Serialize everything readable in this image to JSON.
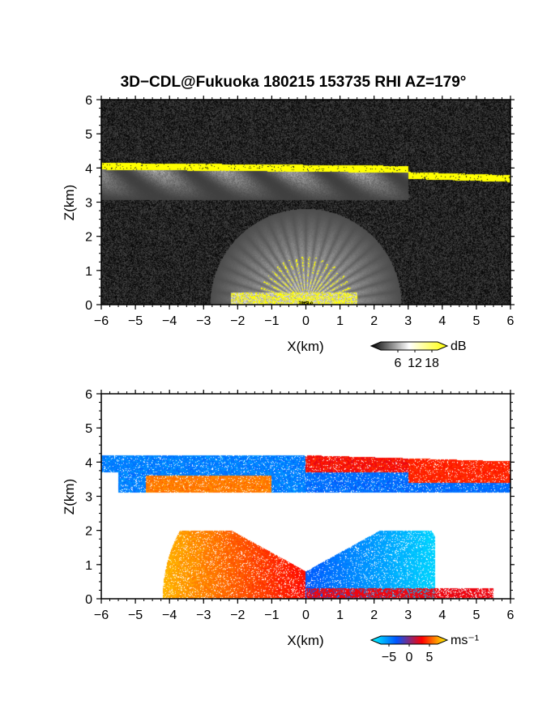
{
  "title": "3D−CDL@Fukuoka 180215 153735 RHI AZ=179°",
  "chart_data": [
    {
      "type": "heatmap",
      "panel": "reflectivity",
      "xlabel": "X(km)",
      "ylabel": "Z(km)",
      "xlim": [
        -6,
        6
      ],
      "ylim": [
        0,
        6
      ],
      "xticks": [
        "−6",
        "−5",
        "−4",
        "−3",
        "−2",
        "−1",
        "0",
        "1",
        "2",
        "3",
        "4",
        "5",
        "6"
      ],
      "yticks": [
        "0",
        "1",
        "2",
        "3",
        "4",
        "5",
        "6"
      ],
      "background": "noise",
      "features": [
        {
          "kind": "layer",
          "z_km": 4.0,
          "x_from": -6,
          "x_to": 6,
          "level": "high"
        },
        {
          "kind": "streaks",
          "z_from": 3.1,
          "z_to": 3.9,
          "x_from": -6,
          "x_to": 2.5,
          "level": "medium"
        },
        {
          "kind": "fan",
          "origin_x": 0,
          "origin_z": 0,
          "radius_km": 2.8,
          "level": "medium"
        },
        {
          "kind": "core",
          "x_from": -2.2,
          "x_to": 1.5,
          "z_from": 0,
          "z_to": 0.4,
          "level": "high"
        }
      ],
      "colorbar": {
        "unit": "dB",
        "ticks": [
          "6",
          "12",
          "18"
        ],
        "range": [
          0,
          20
        ],
        "colors": [
          "#000000",
          "#ffffff",
          "#ffff00"
        ]
      }
    },
    {
      "type": "heatmap",
      "panel": "doppler velocity",
      "xlabel": "X(km)",
      "ylabel": "Z(km)",
      "xlim": [
        -6,
        6
      ],
      "ylim": [
        0,
        6
      ],
      "xticks": [
        "−6",
        "−5",
        "−4",
        "−3",
        "−2",
        "−1",
        "0",
        "1",
        "2",
        "3",
        "4",
        "5",
        "6"
      ],
      "yticks": [
        "0",
        "1",
        "2",
        "3",
        "4",
        "5",
        "6"
      ],
      "features": [
        {
          "kind": "layer",
          "x_from": -6,
          "x_to": 0,
          "z_from": 3.5,
          "z_to": 4.2,
          "velocity": -3
        },
        {
          "kind": "layer",
          "x_from": 0,
          "x_to": 6,
          "z_from": 3.5,
          "z_to": 4.1,
          "velocity": 2.5
        },
        {
          "kind": "layer",
          "x_from": -4.7,
          "x_to": -1,
          "z_from": 3.1,
          "z_to": 3.6,
          "velocity": 4
        },
        {
          "kind": "fan",
          "x_from": -4,
          "x_to": 0,
          "z_from": 0,
          "z_to": 2.0,
          "velocity": 3.5
        },
        {
          "kind": "fan",
          "x_from": 0,
          "x_to": 3.8,
          "z_from": 0,
          "z_to": 1.8,
          "velocity": -4
        },
        {
          "kind": "streak",
          "x_from": 0,
          "x_to": 5.5,
          "z_from": 0,
          "z_to": 0.3,
          "velocity": 1
        }
      ],
      "colorbar": {
        "unit": "ms⁻¹",
        "ticks": [
          "−5",
          "0",
          "5"
        ],
        "range": [
          -7,
          7
        ],
        "colors": [
          "#00ffff",
          "#0055ff",
          "#ff0000",
          "#ffff00"
        ]
      }
    }
  ]
}
